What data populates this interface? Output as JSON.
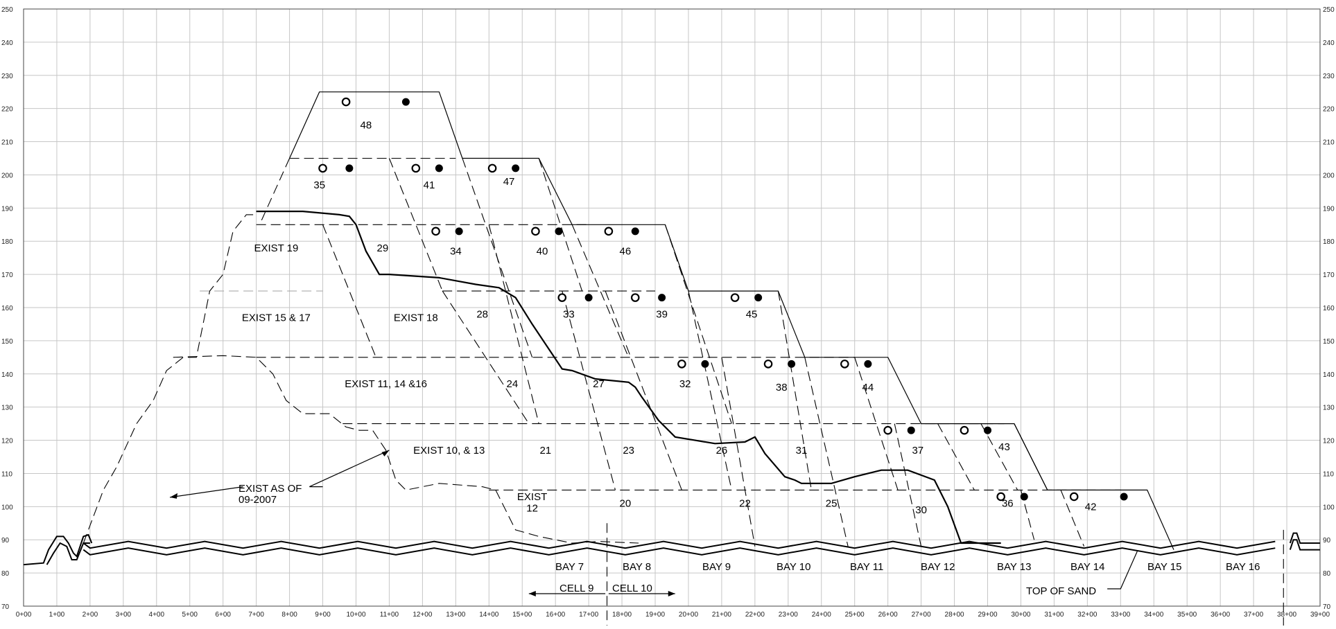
{
  "y_ticks": [
    "70",
    "80",
    "90",
    "100",
    "110",
    "120",
    "130",
    "140",
    "150",
    "160",
    "170",
    "180",
    "190",
    "200",
    "210",
    "220",
    "230",
    "240",
    "250"
  ],
  "x_ticks": [
    "0+00",
    "1+00",
    "2+00",
    "3+00",
    "4+00",
    "5+00",
    "6+00",
    "7+00",
    "8+00",
    "9+00",
    "10+00",
    "11+00",
    "12+00",
    "13+00",
    "14+00",
    "15+00",
    "16+00",
    "17+00",
    "18+00",
    "19+00",
    "20+00",
    "21+00",
    "22+00",
    "23+00",
    "24+00",
    "25+00",
    "26+00",
    "27+00",
    "28+00",
    "29+00",
    "30+00",
    "31+00",
    "32+00",
    "33+00",
    "34+00",
    "35+00",
    "36+00",
    "37+00",
    "38+00",
    "39+00"
  ],
  "y_range": [
    70,
    250
  ],
  "x_range": [
    0,
    39
  ],
  "cells": [
    {
      "label": "48",
      "x": 10.3,
      "y": 215
    },
    {
      "label": "35",
      "x": 8.9,
      "y": 197
    },
    {
      "label": "41",
      "x": 12.2,
      "y": 197
    },
    {
      "label": "47",
      "x": 14.6,
      "y": 198
    },
    {
      "label": "EXIST 19",
      "x": 7.6,
      "y": 178
    },
    {
      "label": "29",
      "x": 10.8,
      "y": 178
    },
    {
      "label": "34",
      "x": 13.0,
      "y": 177
    },
    {
      "label": "40",
      "x": 15.6,
      "y": 177
    },
    {
      "label": "46",
      "x": 18.1,
      "y": 177
    },
    {
      "label": "EXIST 15 & 17",
      "x": 7.6,
      "y": 157
    },
    {
      "label": "EXIST 18",
      "x": 11.8,
      "y": 157
    },
    {
      "label": "28",
      "x": 13.8,
      "y": 158
    },
    {
      "label": "33",
      "x": 16.4,
      "y": 158
    },
    {
      "label": "39",
      "x": 19.2,
      "y": 158
    },
    {
      "label": "45",
      "x": 21.9,
      "y": 158
    },
    {
      "label": "EXIST 11, 14 &16",
      "x": 10.9,
      "y": 137
    },
    {
      "label": "24",
      "x": 14.7,
      "y": 137
    },
    {
      "label": "27",
      "x": 17.3,
      "y": 137
    },
    {
      "label": "32",
      "x": 19.9,
      "y": 137
    },
    {
      "label": "38",
      "x": 22.8,
      "y": 136
    },
    {
      "label": "44",
      "x": 25.4,
      "y": 136
    },
    {
      "label": "EXIST 10, & 13",
      "x": 12.8,
      "y": 117
    },
    {
      "label": "21",
      "x": 15.7,
      "y": 117
    },
    {
      "label": "23",
      "x": 18.2,
      "y": 117
    },
    {
      "label": "26",
      "x": 21.0,
      "y": 117
    },
    {
      "label": "31",
      "x": 23.4,
      "y": 117
    },
    {
      "label": "37",
      "x": 26.9,
      "y": 117
    },
    {
      "label": "43",
      "x": 29.5,
      "y": 118
    },
    {
      "label": "EXIST",
      "x": 15.3,
      "y": 103
    },
    {
      "label": "12",
      "x": 15.3,
      "y": 99.5
    },
    {
      "label": "20",
      "x": 18.1,
      "y": 101
    },
    {
      "label": "22",
      "x": 21.7,
      "y": 101
    },
    {
      "label": "25",
      "x": 24.3,
      "y": 101
    },
    {
      "label": "30",
      "x": 27.0,
      "y": 99
    },
    {
      "label": "36",
      "x": 29.6,
      "y": 101
    },
    {
      "label": "42",
      "x": 32.1,
      "y": 100
    }
  ],
  "bays": [
    "BAY 7",
    "BAY 8",
    "BAY 9",
    "BAY 10",
    "BAY 11",
    "BAY 12",
    "BAY 13",
    "BAY 14",
    "BAY 15",
    "BAY 16"
  ],
  "cell_9": "CELL 9",
  "cell_10": "CELL 10",
  "exist_as_of_1": "EXIST AS OF",
  "exist_as_of_2": "09-2007",
  "top_of_sand": "TOP OF SAND"
}
